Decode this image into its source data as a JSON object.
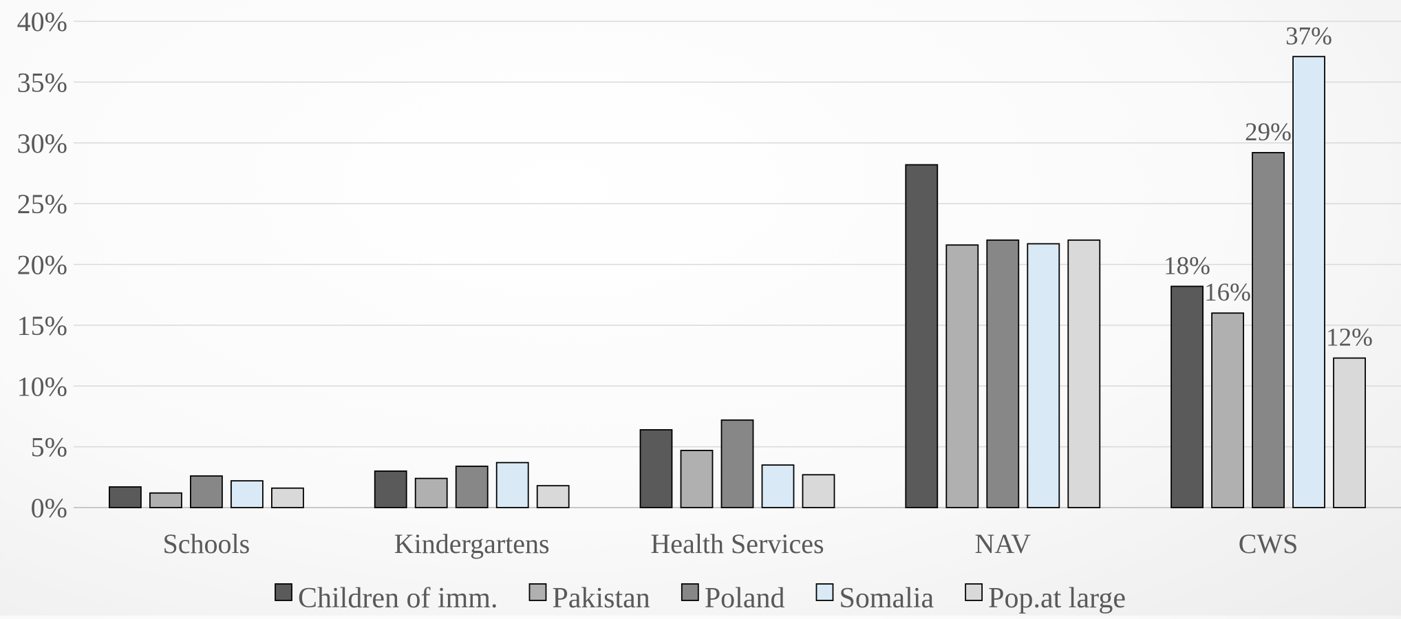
{
  "chart_data": {
    "type": "bar",
    "title": "",
    "xlabel": "",
    "ylabel": "",
    "categories": [
      "Schools",
      "Kindergartens",
      "Health Services",
      "NAV",
      "CWS"
    ],
    "ylim": [
      0,
      40
    ],
    "yticks": [
      "0%",
      "5%",
      "10%",
      "15%",
      "20%",
      "25%",
      "30%",
      "35%",
      "40%"
    ],
    "grid": true,
    "legend_position": "bottom",
    "series": [
      {
        "name": "Children of imm.",
        "color": "#5a5a5a",
        "values": [
          1.7,
          3.0,
          6.4,
          28.2,
          18.2
        ]
      },
      {
        "name": "Pakistan",
        "color": "#b0b0b0",
        "values": [
          1.2,
          2.4,
          4.7,
          21.6,
          16.0
        ]
      },
      {
        "name": "Poland",
        "color": "#878787",
        "values": [
          2.6,
          3.4,
          7.2,
          22.0,
          29.2
        ]
      },
      {
        "name": "Somalia",
        "color": "#d9eaf6",
        "values": [
          2.2,
          3.7,
          3.5,
          21.7,
          37.1
        ]
      },
      {
        "name": "Pop.at large",
        "color": "#d9d9d9",
        "values": [
          1.6,
          1.8,
          2.7,
          22.0,
          12.3
        ]
      }
    ],
    "data_labels": [
      {
        "series": "Children of imm.",
        "category": "CWS",
        "text": "18%"
      },
      {
        "series": "Pakistan",
        "category": "CWS",
        "text": "16%"
      },
      {
        "series": "Poland",
        "category": "CWS",
        "text": "29%"
      },
      {
        "series": "Somalia",
        "category": "CWS",
        "text": "37%"
      },
      {
        "series": "Pop.at large",
        "category": "CWS",
        "text": "12%"
      }
    ]
  }
}
